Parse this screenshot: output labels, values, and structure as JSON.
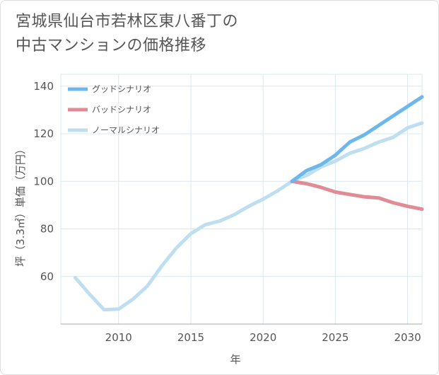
{
  "chart_data": {
    "type": "line",
    "title_lines": [
      "宮城県仙台市若林区東八番丁の",
      "中古マンションの価格推移"
    ],
    "xlabel": "年",
    "ylabel": "坪（3.3㎡）単価（万円）",
    "xlim": [
      2006,
      2031
    ],
    "ylim": [
      40,
      145
    ],
    "x_ticks": [
      2010,
      2015,
      2020,
      2025,
      2030
    ],
    "y_ticks": [
      60,
      80,
      100,
      120,
      140
    ],
    "grid": true,
    "legend_position": "top-left",
    "series": [
      {
        "name": "グッドシナリオ",
        "color": "#6cb8ec",
        "points": [
          [
            2022,
            100
          ],
          [
            2023,
            104.5
          ],
          [
            2024,
            107
          ],
          [
            2025,
            111
          ],
          [
            2026,
            116.5
          ],
          [
            2027,
            119.5
          ],
          [
            2028,
            123.5
          ],
          [
            2029,
            127.5
          ],
          [
            2030,
            131.5
          ],
          [
            2031,
            135.5
          ]
        ]
      },
      {
        "name": "バッドシナリオ",
        "color": "#e08b95",
        "points": [
          [
            2022,
            100
          ],
          [
            2023,
            99
          ],
          [
            2024,
            97.5
          ],
          [
            2025,
            95.5
          ],
          [
            2026,
            94.5
          ],
          [
            2027,
            93.5
          ],
          [
            2028,
            93
          ],
          [
            2029,
            91
          ],
          [
            2030,
            89.5
          ],
          [
            2031,
            88.3
          ]
        ]
      },
      {
        "name": "ノーマルシナリオ",
        "color": "#bfdff0",
        "points": [
          [
            2007,
            59.5
          ],
          [
            2008,
            52.5
          ],
          [
            2009,
            46
          ],
          [
            2010,
            46.3
          ],
          [
            2011,
            50.5
          ],
          [
            2012,
            56
          ],
          [
            2013,
            64.5
          ],
          [
            2014,
            72
          ],
          [
            2015,
            78
          ],
          [
            2016,
            81.8
          ],
          [
            2017,
            83.3
          ],
          [
            2018,
            86
          ],
          [
            2019,
            89.5
          ],
          [
            2020,
            92.5
          ],
          [
            2021,
            96
          ],
          [
            2022,
            100
          ],
          [
            2023,
            102.5
          ],
          [
            2024,
            106
          ],
          [
            2025,
            108.5
          ],
          [
            2026,
            111.8
          ],
          [
            2027,
            113.8
          ],
          [
            2028,
            116.5
          ],
          [
            2029,
            118.5
          ],
          [
            2030,
            122.5
          ],
          [
            2031,
            124.5
          ]
        ]
      }
    ]
  }
}
